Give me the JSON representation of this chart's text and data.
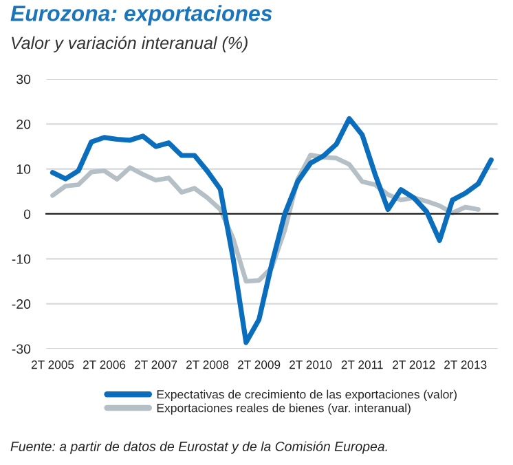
{
  "chart_data": {
    "type": "line",
    "title": "Eurozona: exportaciones",
    "subtitle": "Valor y variación interanual (%)",
    "categories": [
      "2T 2005",
      null,
      null,
      null,
      "2T 2006",
      null,
      null,
      null,
      "2T 2007",
      null,
      null,
      null,
      "2T 2008",
      null,
      null,
      null,
      "2T 2009",
      null,
      null,
      null,
      "2T 2010",
      null,
      null,
      null,
      "2T 2011",
      null,
      null,
      null,
      "2T 2012",
      null,
      null,
      null,
      "2T 2013",
      null,
      null
    ],
    "series": [
      {
        "name": "Expectativas de crecimiento de las exportaciones (valor)",
        "color": "#0a6ebd",
        "values": [
          9.2,
          7.8,
          9.6,
          16,
          17,
          16.6,
          16.4,
          17.3,
          15,
          15.8,
          13,
          13,
          9.5,
          5.5,
          -10,
          -28.6,
          -23.5,
          -11,
          0,
          7.2,
          11.3,
          12.9,
          15.5,
          21.2,
          17.6,
          8.8,
          1.0,
          5.4,
          3.6,
          0.5,
          -5.9,
          3.1,
          4.6,
          6.7,
          12.0
        ]
      },
      {
        "name": "Exportaciones reales de bienes (var. interanual)",
        "color": "#b4bfc6",
        "values": [
          4.1,
          6.2,
          6.5,
          9.3,
          9.6,
          7.7,
          10.3,
          8.8,
          7.5,
          8,
          4.8,
          5.7,
          3.6,
          1,
          -5.5,
          -15,
          -14.8,
          -11.9,
          -3.6,
          7.7,
          13.1,
          12.6,
          12.4,
          11,
          7.2,
          6.5,
          4.3,
          3.1,
          3.6,
          2.8,
          1.8,
          0.2,
          1.5,
          1.0,
          null
        ]
      }
    ],
    "ylim": [
      -30,
      30
    ],
    "yticks": [
      -30,
      -20,
      -10,
      0,
      10,
      20,
      30
    ],
    "grid": "y",
    "legend": "bottom",
    "marker": "none",
    "line_style": "solid",
    "annotations": [
      "Fuente: a partir de datos de Eurostat y de la Comisión Europea."
    ]
  }
}
